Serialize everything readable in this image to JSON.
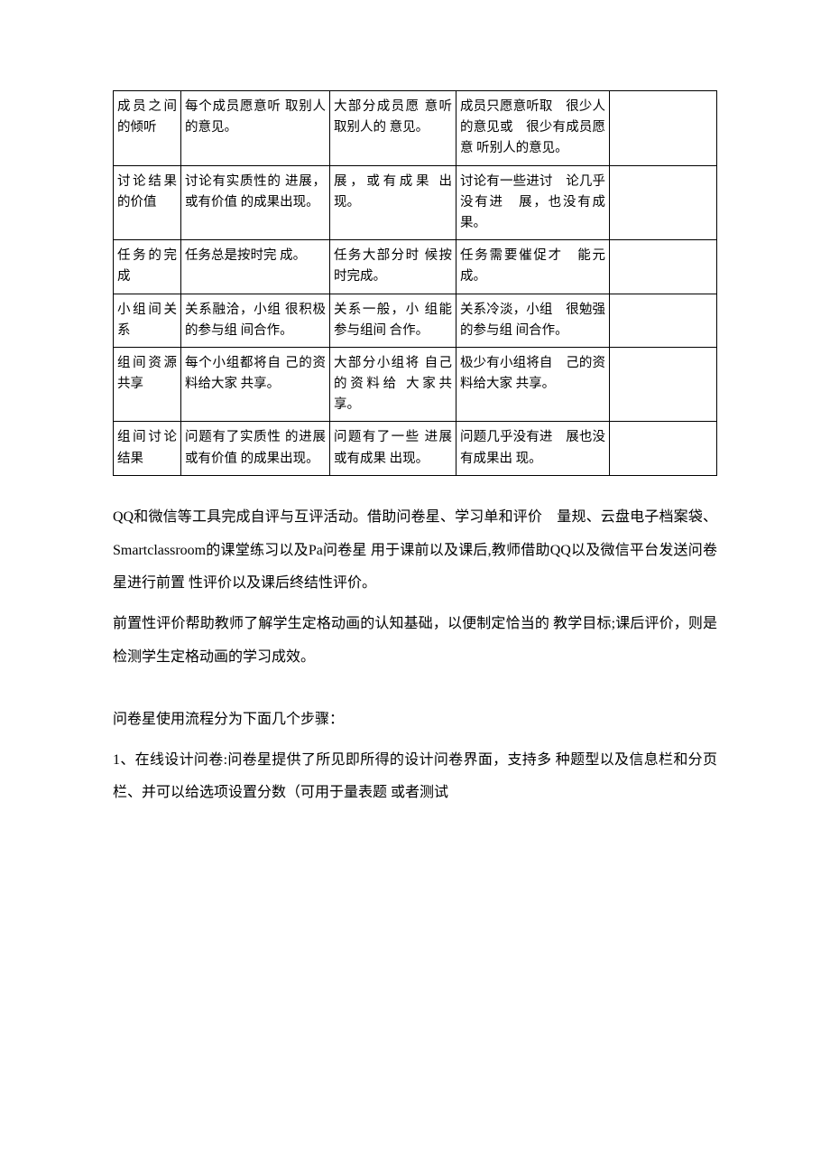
{
  "table": {
    "rows": [
      {
        "label": "成员之间的倾听",
        "a": "每个成员愿意听 取别人的意见。",
        "b": "大部分成员愿 意听取别人的 意见。",
        "c": "成员只愿意听取　很少人的意见或　很少有成员愿意 听别人的意见。",
        "d": ""
      },
      {
        "label": "讨论结果的价值",
        "a": "讨论有实质性的 进展，或有价值 的成果出现。",
        "b": "展，或有成果 出现。",
        "c": "讨论有一些进讨　论几乎没有进　展，也没有成果。",
        "d": ""
      },
      {
        "label": "任务的完成",
        "a": "任务总是按时完 成。",
        "b": "任务大部分时 候按时完成。",
        "c": "任务需要催促才　能元成。",
        "d": ""
      },
      {
        "label": "小组间关系",
        "a": "关系融洽，小组 很积极的参与组 间合作。",
        "b": "关系一般，小 组能参与组间 合作。",
        "c": "关系冷淡，小组　很勉强的参与组 间合作。",
        "d": ""
      },
      {
        "label": "组间资源共享",
        "a": "每个小组都将自 己的资料给大家 共享。",
        "b": "大部分小组将 自己的资料给 大家共享。",
        "c": "极少有小组将自　己的资料给大家 共享。",
        "d": ""
      },
      {
        "label": "组间讨论结果",
        "a": "问题有了实质性 的进展或有价值 的成果出现。",
        "b": "问题有了一些 进展或有成果 出现。",
        "c": "问题几乎没有进　展也没有成果出 现。",
        "d": ""
      }
    ]
  },
  "paragraphs": {
    "p1": "QQ和微信等工具完成自评与互评活动。借助问卷星、学习单和评价　量规、云盘电子档案袋、Smartclassroom的课堂练习以及Pa问卷星 用于课前以及课后,教师借助QQ以及微信平台发送问卷星进行前置 性评价以及课后终结性评价。",
    "p2": "前置性评价帮助教师了解学生定格动画的认知基础，以便制定恰当的 教学目标;课后评价，则是检测学生定格动画的学习成效。",
    "p3": "问卷星使用流程分为下面几个步骤：",
    "p4": "1、在线设计问卷:问卷星提供了所见即所得的设计问卷界面，支持多 种题型以及信息栏和分页栏、并可以给选项设置分数（可用于量表题 或者测试"
  }
}
